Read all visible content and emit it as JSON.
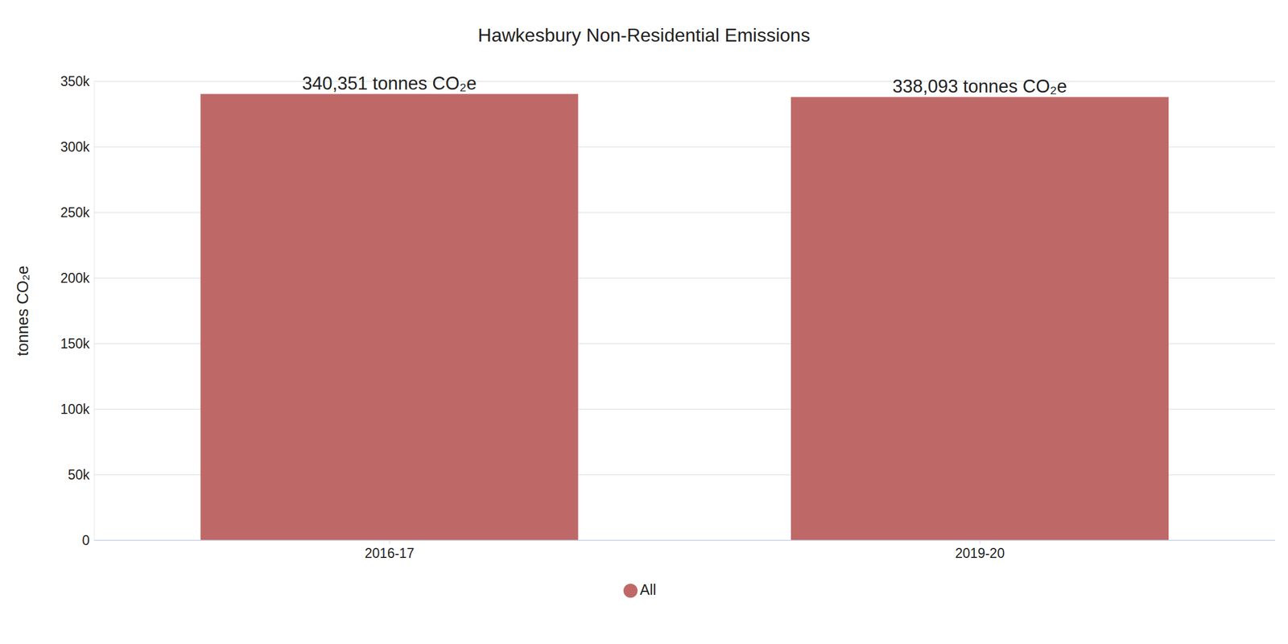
{
  "chart_data": {
    "type": "bar",
    "title": "Hawkesbury Non-Residential Emissions",
    "y_label": "tonnes CO₂e",
    "categories": [
      "2016-17",
      "2019-20"
    ],
    "series": [
      {
        "name": "All",
        "color": "#bf6868",
        "values": [
          340351,
          338093
        ],
        "value_labels": [
          "340,351 tonnes CO₂e",
          "338,093 tonnes CO₂e"
        ]
      }
    ],
    "ylim": [
      0,
      350000
    ],
    "yticks": [
      0,
      {
        "value": 50000,
        "label": "50k"
      },
      {
        "value": 100000,
        "label": "100k"
      },
      {
        "value": 150000,
        "label": "150k"
      },
      {
        "value": 200000,
        "label": "200k"
      },
      {
        "value": 250000,
        "label": "250k"
      },
      {
        "value": 300000,
        "label": "300k"
      },
      {
        "value": 350000,
        "label": "350k"
      }
    ],
    "grid": true,
    "legend": "bottom",
    "data_labels": true
  }
}
